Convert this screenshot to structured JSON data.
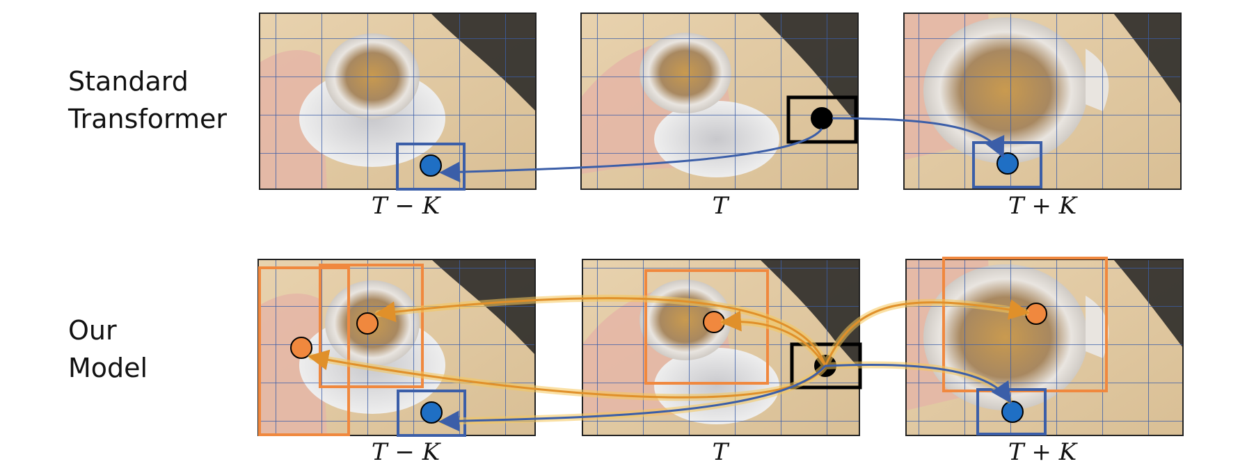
{
  "rows": [
    {
      "label_line1": "Standard",
      "label_line2": "Transformer"
    },
    {
      "label_line1": "Our",
      "label_line2": "Model"
    }
  ],
  "frame_labels": [
    "T − K",
    "T",
    "T + K"
  ],
  "colors": {
    "grid": "#3b5ea8",
    "query": "#000000",
    "blue_token": "#1f6fc4",
    "orange_token": "#f0883e",
    "orange_box": "#f0883e",
    "attention_glow": "#f7b733",
    "blue_arrow": "#3b5ea8"
  }
}
